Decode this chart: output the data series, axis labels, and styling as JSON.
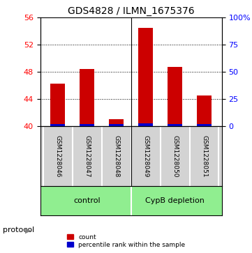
{
  "title": "GDS4828 / ILMN_1675376",
  "samples": [
    "GSM1228046",
    "GSM1228047",
    "GSM1228048",
    "GSM1228049",
    "GSM1228050",
    "GSM1228051"
  ],
  "count_values": [
    46.3,
    48.4,
    41.0,
    54.5,
    48.7,
    44.5
  ],
  "percentile_values": [
    1.5,
    1.5,
    1.5,
    2.5,
    2.0,
    1.5
  ],
  "groups": [
    {
      "name": "control",
      "indices": [
        0,
        1,
        2
      ],
      "color": "#90ee90"
    },
    {
      "name": "CypB depletion",
      "indices": [
        3,
        4,
        5
      ],
      "color": "#90ee90"
    }
  ],
  "bar_color_red": "#cc0000",
  "bar_color_blue": "#0000cc",
  "ylim_left": [
    40,
    56
  ],
  "ylim_right": [
    0,
    100
  ],
  "yticks_left": [
    40,
    44,
    48,
    52,
    56
  ],
  "yticks_right": [
    0,
    25,
    50,
    75,
    100
  ],
  "ytick_labels_right": [
    "0",
    "25",
    "50",
    "75",
    "100%"
  ],
  "grid_yticks": [
    44,
    48,
    52
  ],
  "background_color": "#ffffff",
  "plot_bg_color": "#ffffff",
  "sample_box_color": "#d3d3d3",
  "legend_count_label": "count",
  "legend_percentile_label": "percentile rank within the sample",
  "protocol_label": "protocol"
}
